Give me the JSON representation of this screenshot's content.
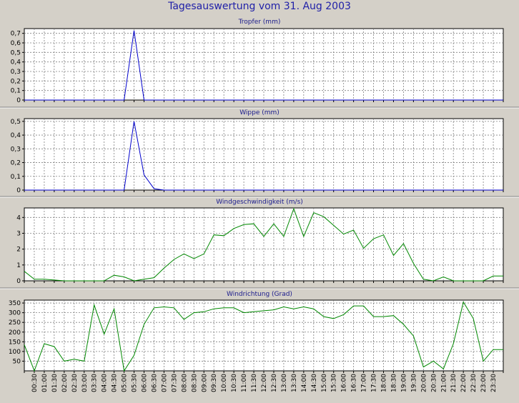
{
  "title": "Tagesauswertung vom 31. Aug 2003",
  "x_labels": [
    "00:30",
    "01:00",
    "01:30",
    "02:00",
    "02:30",
    "03:00",
    "03:30",
    "04:00",
    "04:30",
    "05:00",
    "05:30",
    "06:00",
    "06:30",
    "07:00",
    "07:30",
    "08:00",
    "08:30",
    "09:00",
    "09:30",
    "10:00",
    "10:30",
    "11:00",
    "11:30",
    "12:00",
    "12:30",
    "13:00",
    "13:30",
    "14:00",
    "14:30",
    "15:00",
    "15:30",
    "16:00",
    "16:30",
    "17:00",
    "17:30",
    "18:00",
    "18:30",
    "19:00",
    "19:30",
    "20:00",
    "20:30",
    "21:00",
    "21:30",
    "22:00",
    "22:30",
    "23:00",
    "23:30"
  ],
  "chart_data": [
    {
      "type": "line",
      "title": "Tropfer (mm)",
      "color": "#0000cc",
      "ylim": [
        0,
        0.75
      ],
      "yticks": [
        "0",
        "0,1",
        "0,2",
        "0,3",
        "0,4",
        "0,5",
        "0,6",
        "0,7"
      ],
      "x": [
        "00:00",
        "00:30",
        "01:00",
        "01:30",
        "02:00",
        "02:30",
        "03:00",
        "03:30",
        "04:00",
        "04:30",
        "05:00",
        "05:30",
        "06:00",
        "06:30",
        "07:00",
        "07:30",
        "08:00",
        "08:30",
        "09:00",
        "09:30",
        "10:00",
        "10:30",
        "11:00",
        "11:30",
        "12:00",
        "12:30",
        "13:00",
        "13:30",
        "14:00",
        "14:30",
        "15:00",
        "15:30",
        "16:00",
        "16:30",
        "17:00",
        "17:30",
        "18:00",
        "18:30",
        "19:00",
        "19:30",
        "20:00",
        "20:30",
        "21:00",
        "21:30",
        "22:00",
        "22:30",
        "23:00",
        "23:30",
        "24:00"
      ],
      "values": [
        0,
        0,
        0,
        0,
        0,
        0,
        0,
        0,
        0,
        0,
        0,
        0.73,
        0,
        0,
        0,
        0,
        0,
        0,
        0,
        0,
        0,
        0,
        0,
        0,
        0,
        0,
        0,
        0,
        0,
        0,
        0,
        0,
        0,
        0,
        0,
        0,
        0,
        0,
        0,
        0,
        0,
        0,
        0,
        0,
        0,
        0,
        0,
        0,
        0
      ]
    },
    {
      "type": "line",
      "title": "Wippe (mm)",
      "color": "#0000cc",
      "ylim": [
        0,
        0.52
      ],
      "yticks": [
        "0",
        "0,1",
        "0,2",
        "0,3",
        "0,4",
        "0,5"
      ],
      "x": [
        "00:00",
        "00:30",
        "01:00",
        "01:30",
        "02:00",
        "02:30",
        "03:00",
        "03:30",
        "04:00",
        "04:30",
        "05:00",
        "05:30",
        "06:00",
        "06:30",
        "07:00",
        "07:30",
        "08:00",
        "08:30",
        "09:00",
        "09:30",
        "10:00",
        "10:30",
        "11:00",
        "11:30",
        "12:00",
        "12:30",
        "13:00",
        "13:30",
        "14:00",
        "14:30",
        "15:00",
        "15:30",
        "16:00",
        "16:30",
        "17:00",
        "17:30",
        "18:00",
        "18:30",
        "19:00",
        "19:30",
        "20:00",
        "20:30",
        "21:00",
        "21:30",
        "22:00",
        "22:30",
        "23:00",
        "23:30",
        "24:00"
      ],
      "values": [
        0,
        0,
        0,
        0,
        0,
        0,
        0,
        0,
        0,
        0,
        0,
        0.5,
        0.11,
        0.01,
        0,
        0,
        0,
        0,
        0,
        0,
        0,
        0,
        0,
        0,
        0,
        0,
        0,
        0,
        0,
        0,
        0,
        0,
        0,
        0,
        0,
        0,
        0,
        0,
        0,
        0,
        0,
        0,
        0,
        0,
        0,
        0,
        0,
        0,
        0
      ]
    },
    {
      "type": "line",
      "title": "Windgeschwindigkeit (m/s)",
      "color": "#008800",
      "ylim": [
        0,
        4.6
      ],
      "yticks": [
        "0",
        "1",
        "2",
        "3",
        "4"
      ],
      "x": [
        "00:00",
        "00:30",
        "01:00",
        "01:30",
        "02:00",
        "02:30",
        "03:00",
        "03:30",
        "04:00",
        "04:30",
        "05:00",
        "05:30",
        "06:00",
        "06:30",
        "07:00",
        "07:30",
        "08:00",
        "08:30",
        "09:00",
        "09:30",
        "10:00",
        "10:30",
        "11:00",
        "11:30",
        "12:00",
        "12:30",
        "13:00",
        "13:30",
        "14:00",
        "14:30",
        "15:00",
        "15:30",
        "16:00",
        "16:30",
        "17:00",
        "17:30",
        "18:00",
        "18:30",
        "19:00",
        "19:30",
        "20:00",
        "20:30",
        "21:00",
        "21:30",
        "22:00",
        "22:30",
        "23:00",
        "23:30",
        "24:00"
      ],
      "values": [
        0.6,
        0.1,
        0.1,
        0.05,
        0,
        0,
        0,
        0,
        0,
        0.35,
        0.25,
        0,
        0.1,
        0.2,
        0.8,
        1.35,
        1.7,
        1.4,
        1.7,
        2.9,
        2.85,
        3.3,
        3.55,
        3.6,
        2.8,
        3.6,
        2.8,
        4.55,
        2.8,
        4.3,
        4.05,
        3.5,
        2.95,
        3.2,
        2.05,
        2.65,
        2.9,
        1.6,
        2.35,
        1.1,
        0.1,
        0,
        0.25,
        0,
        0,
        0,
        0,
        0.3,
        0.3
      ]
    },
    {
      "type": "line",
      "title": "Windrichtung (Grad)",
      "color": "#008800",
      "ylim": [
        0,
        365
      ],
      "yticks": [
        "50",
        "100",
        "150",
        "200",
        "250",
        "300",
        "350"
      ],
      "x": [
        "00:00",
        "00:30",
        "01:00",
        "01:30",
        "02:00",
        "02:30",
        "03:00",
        "03:30",
        "04:00",
        "04:30",
        "05:00",
        "05:30",
        "06:00",
        "06:30",
        "07:00",
        "07:30",
        "08:00",
        "08:30",
        "09:00",
        "09:30",
        "10:00",
        "10:30",
        "11:00",
        "11:30",
        "12:00",
        "12:30",
        "13:00",
        "13:30",
        "14:00",
        "14:30",
        "15:00",
        "15:30",
        "16:00",
        "16:30",
        "17:00",
        "17:30",
        "18:00",
        "18:30",
        "19:00",
        "19:30",
        "20:00",
        "20:30",
        "21:00",
        "21:30",
        "22:00",
        "22:30",
        "23:00",
        "23:30",
        "24:00"
      ],
      "values": [
        135,
        0,
        140,
        125,
        50,
        60,
        50,
        340,
        190,
        320,
        0,
        80,
        240,
        325,
        330,
        325,
        265,
        300,
        305,
        320,
        325,
        325,
        300,
        305,
        310,
        315,
        330,
        320,
        330,
        320,
        280,
        270,
        290,
        335,
        335,
        280,
        280,
        285,
        240,
        180,
        20,
        50,
        10,
        140,
        355,
        270,
        50,
        110,
        110
      ]
    }
  ]
}
